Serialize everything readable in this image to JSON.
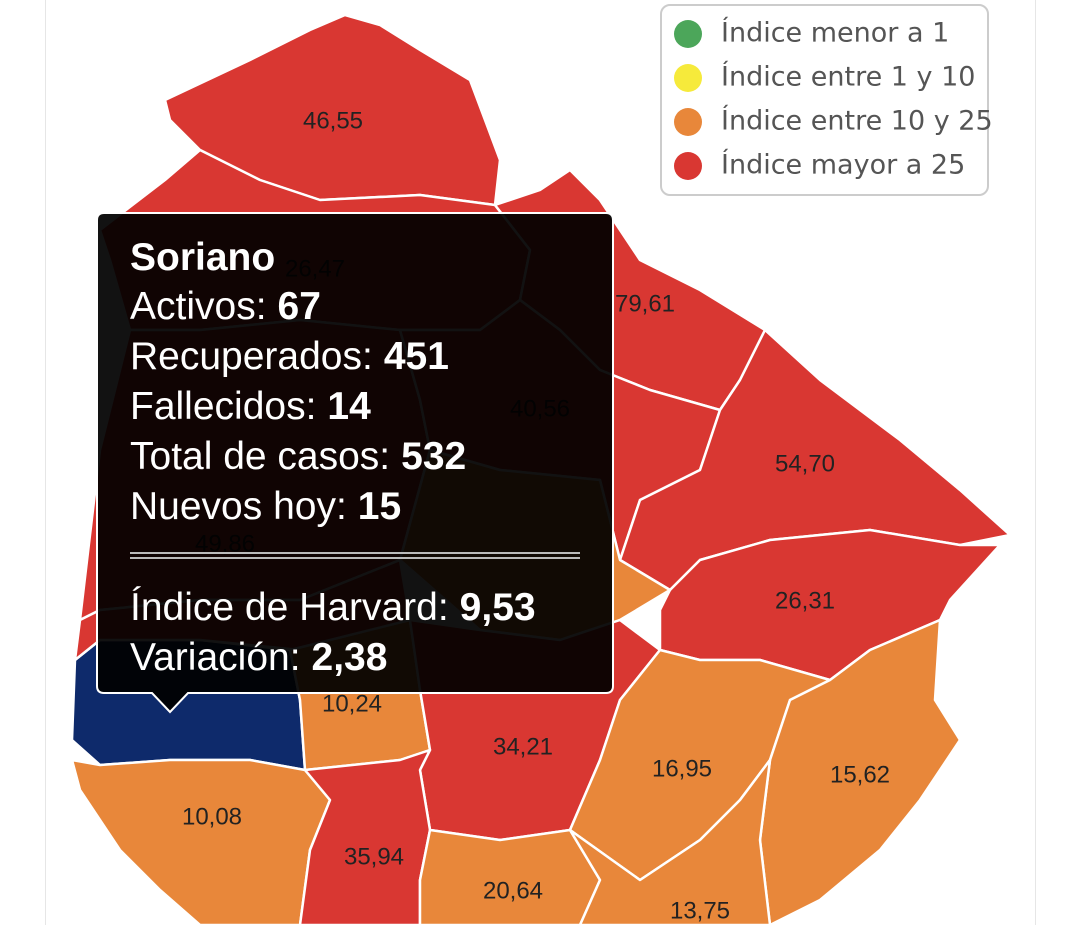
{
  "legend": [
    {
      "label": "Índice menor a 1",
      "color": "#4ca65a"
    },
    {
      "label": "Índice entre 1 y 10",
      "color": "#f6ea3b"
    },
    {
      "label": "Índice entre 10 y 25",
      "color": "#e8873a"
    },
    {
      "label": "Índice mayor a 25",
      "color": "#d93732"
    }
  ],
  "regions": [
    {
      "label": "46,55",
      "color": "#d93732"
    },
    {
      "label": "26,47",
      "color": "#d93732"
    },
    {
      "label": "79,61",
      "color": "#d93732"
    },
    {
      "label": "49,86",
      "color": "#d93732"
    },
    {
      "label": "40,56",
      "color": "#d93732"
    },
    {
      "label": "54,70",
      "color": "#d93732"
    },
    {
      "label": "26,31",
      "color": "#d93732"
    },
    {
      "color": "#e8873a"
    },
    {
      "color": "#0e2a6b"
    },
    {
      "color": "#d93732"
    },
    {
      "label": "10,24",
      "color": "#e8873a"
    },
    {
      "label": "34,21",
      "color": "#d93732"
    },
    {
      "label": "16,95",
      "color": "#e8873a"
    },
    {
      "label": "15,62",
      "color": "#e8873a"
    },
    {
      "label": "10,08",
      "color": "#e8873a"
    },
    {
      "label": "35,94",
      "color": "#d93732"
    },
    {
      "label": "20,64",
      "color": "#e8873a"
    },
    {
      "label": "13,75",
      "color": "#e8873a"
    }
  ],
  "tooltip": {
    "title": "Soriano",
    "stats": [
      {
        "label": "Activos:",
        "value": "67"
      },
      {
        "label": "Recuperados:",
        "value": "451"
      },
      {
        "label": "Fallecidos:",
        "value": "14"
      },
      {
        "label": "Total de casos:",
        "value": "532"
      },
      {
        "label": "Nuevos hoy:",
        "value": "15"
      }
    ],
    "index": [
      {
        "label": "Índice de Harvard:",
        "value": "9,53"
      },
      {
        "label": "Variación:",
        "value": "2,38"
      }
    ]
  }
}
